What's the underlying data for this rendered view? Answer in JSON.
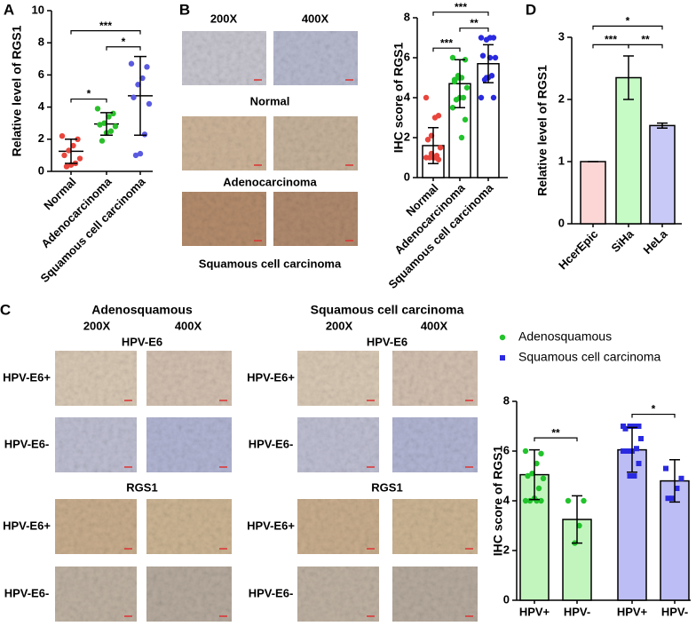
{
  "figure": {
    "panel_labels": [
      "A",
      "B",
      "C",
      "D"
    ],
    "panel_b": {
      "magnifications": [
        "200X",
        "400X"
      ],
      "rows": [
        "Normal",
        "Adenocarcinoma",
        "Squamous cell carcinoma"
      ]
    },
    "panel_c": [
      {
        "title": "Adenosquamous",
        "magnifications": [
          "200X",
          "400X"
        ],
        "stains": [
          {
            "title": "HPV-E6",
            "rows": [
              "HPV-E6+",
              "HPV-E6-"
            ]
          },
          {
            "title": "RGS1",
            "rows": [
              "HPV-E6+",
              "HPV-E6-"
            ]
          }
        ]
      },
      {
        "title": "Squamous cell carcinoma",
        "magnifications": [
          "200X",
          "400X"
        ],
        "stains": [
          {
            "title": "HPV-E6",
            "rows": [
              "HPV-E6+",
              "HPV-E6-"
            ]
          },
          {
            "title": "RGS1",
            "rows": [
              "HPV-E6+",
              "HPV-E6-"
            ]
          }
        ]
      }
    ]
  },
  "chart_data": [
    {
      "type": "dot",
      "ylabel": "Relative level of RGS1",
      "categories": [
        "Normal",
        "Adenocarcinoma",
        "Squamous cell carcinoma"
      ],
      "ylim": [
        0,
        10
      ],
      "yticks": [
        0,
        2,
        4,
        6,
        8,
        10
      ],
      "groups": [
        {
          "color": "#e8453c",
          "mean": 1.25,
          "sd": 0.75,
          "points": [
            2.2,
            2.0,
            1.6,
            1.3,
            1.0,
            0.8,
            0.5,
            0.4,
            0.3
          ]
        },
        {
          "color": "#2bbf2b",
          "mean": 2.95,
          "sd": 0.7,
          "points": [
            3.9,
            3.6,
            3.4,
            3.0,
            2.9,
            2.8,
            2.5,
            2.4,
            1.9
          ]
        },
        {
          "color": "#5a5ae0",
          "mean": 4.7,
          "sd": 2.45,
          "points": [
            6.7,
            6.5,
            5.8,
            5.4,
            4.6,
            4.2,
            2.3,
            1.1,
            1.0
          ]
        }
      ],
      "annotations": [
        {
          "between": [
            0,
            1
          ],
          "label": "*"
        },
        {
          "between": [
            1,
            2
          ],
          "label": "*"
        },
        {
          "between": [
            0,
            2
          ],
          "label": "***"
        }
      ]
    },
    {
      "type": "bar",
      "ylabel": "IHC score of RGS1",
      "categories": [
        "Normal",
        "Adenocarcinoma",
        "Squamous cell carcinoma"
      ],
      "ylim": [
        0,
        8
      ],
      "yticks": [
        0,
        2,
        4,
        6,
        8
      ],
      "groups": [
        {
          "color": "#e8453c",
          "fill": "#ffffff",
          "mean": 1.6,
          "sd": 0.9,
          "points": [
            4.0,
            3.1,
            3.0,
            2.1,
            1.9,
            1.5,
            1.1,
            1.0,
            1.0,
            1.0,
            0.9,
            1.0,
            1.2
          ]
        },
        {
          "color": "#22c32c",
          "fill": "#ffffff",
          "mean": 4.7,
          "sd": 1.2,
          "points": [
            6.0,
            5.9,
            5.0,
            5.0,
            4.9,
            4.5,
            4.0,
            4.0,
            3.9,
            3.5,
            2.9,
            2.0,
            5.1,
            4.8
          ]
        },
        {
          "color": "#2a2ae0",
          "fill": "#ffffff",
          "mean": 5.7,
          "sd": 0.95,
          "points": [
            7.0,
            7.0,
            7.0,
            6.9,
            6.1,
            6.0,
            5.1,
            5.0,
            4.9,
            4.0,
            4.0,
            6.0,
            5.0
          ]
        }
      ],
      "annotations": [
        {
          "between": [
            0,
            1
          ],
          "label": "***"
        },
        {
          "between": [
            1,
            2
          ],
          "label": "**"
        },
        {
          "between": [
            0,
            2
          ],
          "label": "***"
        }
      ]
    },
    {
      "type": "bar",
      "ylabel": "Relative level of RGS1",
      "categories": [
        "HcerEpic",
        "SiHa",
        "HeLa"
      ],
      "ylim": [
        0,
        3
      ],
      "yticks": [
        0,
        1,
        2,
        3
      ],
      "groups": [
        {
          "fill": "#fcd5d5",
          "mean": 1.0,
          "sd": 0
        },
        {
          "fill": "#c6fbc6",
          "mean": 2.35,
          "sd": 0.35
        },
        {
          "fill": "#c9c9f7",
          "mean": 1.58,
          "sd": 0.04
        }
      ],
      "annotations": [
        {
          "between": [
            0,
            1
          ],
          "label": "***"
        },
        {
          "between": [
            1,
            2
          ],
          "label": "**"
        },
        {
          "between": [
            0,
            2
          ],
          "label": "*"
        }
      ]
    },
    {
      "type": "bar",
      "ylabel": "IHC score of RGS1",
      "categories": [
        "HPV+",
        "HPV-",
        "HPV+",
        "HPV-"
      ],
      "ylim": [
        0,
        8
      ],
      "yticks": [
        0,
        2,
        4,
        6,
        8
      ],
      "legend": [
        {
          "name": "Adenosquamous",
          "color": "#22c32c",
          "marker": "circle"
        },
        {
          "name": "Squamous cell carcinoma",
          "color": "#2a2ae0",
          "marker": "square"
        }
      ],
      "groups": [
        {
          "color": "#22c32c",
          "fill": "#c2f5bd",
          "marker": "circle",
          "mean": 5.05,
          "sd": 1.0,
          "points": [
            6.0,
            5.9,
            5.5,
            5.1,
            5.0,
            4.9,
            4.5,
            4.1,
            4.0,
            4.0,
            4.0,
            4.0
          ]
        },
        {
          "color": "#22c32c",
          "fill": "#c2f5bd",
          "marker": "circle",
          "mean": 3.25,
          "sd": 0.95,
          "points": [
            4.0,
            4.0,
            3.0,
            2.3
          ]
        },
        {
          "color": "#2a2ae0",
          "fill": "#bdbdf5",
          "marker": "square",
          "mean": 6.05,
          "sd": 0.9,
          "points": [
            7.0,
            7.0,
            7.0,
            7.0,
            6.9,
            6.5,
            6.1,
            6.0,
            6.0,
            6.0,
            5.5,
            5.0,
            5.0
          ]
        },
        {
          "color": "#2a2ae0",
          "fill": "#bdbdf5",
          "marker": "square",
          "mean": 4.8,
          "sd": 0.85,
          "points": [
            5.3,
            4.9,
            4.5,
            4.1,
            4.1
          ]
        }
      ],
      "annotations": [
        {
          "between": [
            0,
            1
          ],
          "label": "**"
        },
        {
          "between": [
            2,
            3
          ],
          "label": "*"
        }
      ]
    }
  ]
}
